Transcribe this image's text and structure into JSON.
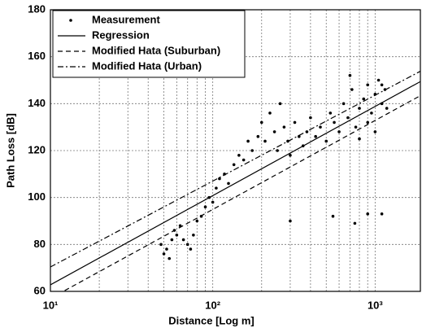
{
  "chart_data": {
    "type": "scatter",
    "xlabel": "Distance [Log m]",
    "ylabel": "Path Loss [dB]",
    "xscale": "log",
    "xlim": [
      10,
      1900
    ],
    "ylim": [
      60,
      180
    ],
    "xticks": [
      {
        "value": 10,
        "label": "10¹"
      },
      {
        "value": 100,
        "label": "10²"
      },
      {
        "value": 1000,
        "label": "10³"
      }
    ],
    "xminor_ticks": [
      20,
      30,
      40,
      50,
      60,
      70,
      80,
      90,
      200,
      300,
      400,
      500,
      600,
      700,
      800,
      900
    ],
    "yticks": [
      60,
      80,
      100,
      120,
      140,
      160,
      180
    ],
    "grid": true,
    "legend": "upper left",
    "series": [
      {
        "name": "Measurement",
        "type": "scatter",
        "color": "#000000",
        "x": [
          48,
          50,
          52,
          54,
          56,
          58,
          60,
          63,
          66,
          70,
          73,
          76,
          80,
          85,
          90,
          95,
          100,
          105,
          110,
          118,
          125,
          135,
          145,
          155,
          165,
          175,
          190,
          200,
          210,
          225,
          240,
          250,
          260,
          275,
          290,
          300,
          320,
          340,
          360,
          380,
          400,
          430,
          460,
          500,
          530,
          560,
          600,
          640,
          680,
          720,
          760,
          800,
          850,
          900,
          950,
          1000,
          1050,
          1100,
          1150,
          1180,
          700,
          800,
          900,
          1000,
          1100,
          300,
          550,
          750,
          900,
          1100
        ],
        "values": [
          80,
          76,
          78,
          74,
          82,
          86,
          84,
          88,
          82,
          80,
          78,
          84,
          90,
          92,
          96,
          100,
          98,
          104,
          108,
          110,
          106,
          114,
          118,
          116,
          124,
          120,
          126,
          132,
          124,
          136,
          128,
          120,
          140,
          130,
          124,
          118,
          132,
          126,
          122,
          128,
          134,
          126,
          130,
          124,
          136,
          132,
          128,
          140,
          134,
          146,
          130,
          138,
          142,
          148,
          136,
          144,
          150,
          140,
          146,
          138,
          152,
          125,
          132,
          128,
          148,
          90,
          92,
          89,
          93,
          93
        ]
      },
      {
        "name": "Regression",
        "type": "line",
        "dash": "solid",
        "color": "#000000",
        "x": [
          10,
          1900
        ],
        "values": [
          62.8,
          149.4
        ]
      },
      {
        "name": "Modified Hata (Suburban)",
        "type": "line",
        "dash": "dashed",
        "color": "#000000",
        "x": [
          10,
          1900
        ],
        "values": [
          57,
          143.4
        ]
      },
      {
        "name": "Modified Hata (Urban)",
        "type": "line",
        "dash": "dashdot",
        "color": "#000000",
        "x": [
          10,
          1900
        ],
        "values": [
          70.4,
          153.8
        ]
      }
    ]
  }
}
